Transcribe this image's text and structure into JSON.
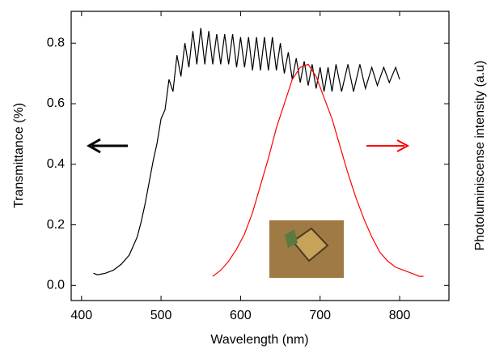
{
  "chart_data": {
    "type": "line",
    "x_label": "Wavelength (nm)",
    "y_label": "Transmittance (%)",
    "y2_label": "Photoluminiscense intensity (a.u)",
    "xlim": [
      387,
      862
    ],
    "xticks": [
      400,
      500,
      600,
      700,
      800
    ],
    "ylim": [
      -0.05,
      0.905
    ],
    "yticks": [
      {
        "value": 0,
        "label": "0.0"
      },
      0.2,
      0.4,
      0.6,
      0.8
    ],
    "y2lim": [
      -0.05,
      0.905
    ],
    "series": [
      {
        "name": "Transmittance",
        "color": "#000000",
        "x": [
          415,
          420,
          430,
          440,
          450,
          460,
          470,
          475,
          480,
          485,
          490,
          495,
          500,
          505,
          510,
          515,
          520,
          525,
          530,
          535,
          540,
          545,
          550,
          555,
          560,
          565,
          570,
          575,
          580,
          585,
          590,
          595,
          600,
          605,
          610,
          615,
          620,
          625,
          630,
          635,
          640,
          645,
          650,
          655,
          660,
          665,
          670,
          675,
          680,
          685,
          690,
          695,
          700,
          705,
          710,
          715,
          720,
          727,
          735,
          742,
          750,
          757,
          765,
          772,
          780,
          787,
          795,
          800
        ],
        "values": [
          0.04,
          0.035,
          0.04,
          0.05,
          0.07,
          0.1,
          0.16,
          0.21,
          0.27,
          0.34,
          0.41,
          0.47,
          0.55,
          0.58,
          0.68,
          0.64,
          0.76,
          0.69,
          0.8,
          0.72,
          0.84,
          0.73,
          0.85,
          0.73,
          0.84,
          0.73,
          0.83,
          0.73,
          0.83,
          0.73,
          0.83,
          0.72,
          0.82,
          0.72,
          0.82,
          0.71,
          0.82,
          0.71,
          0.82,
          0.71,
          0.82,
          0.71,
          0.8,
          0.7,
          0.77,
          0.68,
          0.75,
          0.67,
          0.74,
          0.66,
          0.73,
          0.65,
          0.72,
          0.64,
          0.72,
          0.64,
          0.73,
          0.64,
          0.73,
          0.64,
          0.73,
          0.65,
          0.72,
          0.66,
          0.72,
          0.67,
          0.72,
          0.68
        ]
      },
      {
        "name": "Photoluminiscence",
        "color": "#ff0000",
        "axis": "y2",
        "x": [
          565,
          575,
          585,
          595,
          605,
          615,
          625,
          635,
          645,
          655,
          665,
          675,
          685,
          695,
          705,
          715,
          725,
          735,
          745,
          755,
          765,
          775,
          785,
          795,
          805,
          815,
          825,
          830
        ],
        "values": [
          0.03,
          0.05,
          0.08,
          0.12,
          0.17,
          0.24,
          0.33,
          0.42,
          0.52,
          0.6,
          0.68,
          0.72,
          0.73,
          0.69,
          0.62,
          0.55,
          0.46,
          0.37,
          0.29,
          0.22,
          0.16,
          0.11,
          0.08,
          0.06,
          0.05,
          0.04,
          0.03,
          0.03
        ]
      }
    ]
  }
}
